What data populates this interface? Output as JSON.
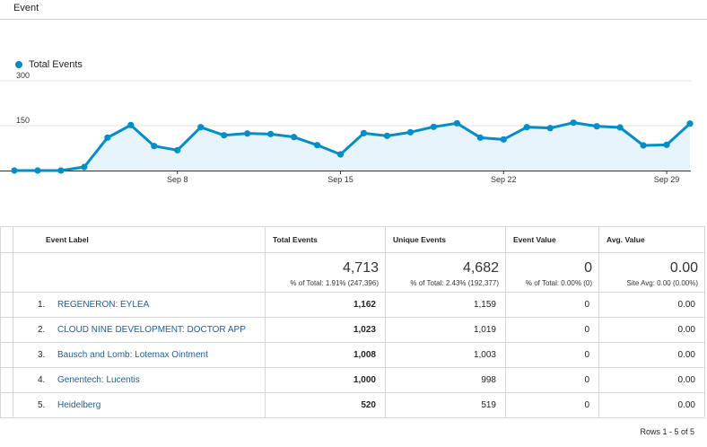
{
  "header": {
    "title": "Event"
  },
  "legend": {
    "label": "Total Events",
    "color": "#058dc7"
  },
  "chart_data": {
    "type": "area",
    "series": [
      {
        "name": "Total Events",
        "values": [
          0,
          0,
          0,
          12,
          110,
          152,
          82,
          68,
          145,
          118,
          124,
          122,
          112,
          85,
          54,
          125,
          116,
          128,
          146,
          158,
          110,
          104,
          145,
          142,
          160,
          148,
          144,
          84,
          86,
          157
        ]
      }
    ],
    "yticks": [
      "300",
      "150"
    ],
    "ylim": [
      0,
      300
    ],
    "xticks": [
      {
        "index": 7,
        "label": "Sep 8"
      },
      {
        "index": 14,
        "label": "Sep 15"
      },
      {
        "index": 21,
        "label": "Sep 22"
      },
      {
        "index": 28,
        "label": "Sep 29"
      }
    ],
    "grid": true,
    "line_color": "#058dc7",
    "fill_color": "#e6f3fa"
  },
  "table": {
    "headers": {
      "label": "Event Label",
      "total": "Total Events",
      "unique": "Unique Events",
      "value": "Event Value",
      "avg": "Avg. Value"
    },
    "totals": {
      "total": "4,713",
      "total_sub": "% of Total: 1.91% (247,396)",
      "unique": "4,682",
      "unique_sub": "% of Total: 2.43% (192,377)",
      "value": "0",
      "value_sub": "% of Total: 0.00% (0)",
      "avg": "0.00",
      "avg_sub": "Site Avg: 0.00 (0.00%)"
    },
    "rows": [
      {
        "num": "1.",
        "label": "REGENERON: EYLEA",
        "total": "1,162",
        "unique": "1,159",
        "value": "0",
        "avg": "0.00"
      },
      {
        "num": "2.",
        "label": "CLOUD NINE DEVELOPMENT: DOCTOR APP",
        "total": "1,023",
        "unique": "1,019",
        "value": "0",
        "avg": "0.00"
      },
      {
        "num": "3.",
        "label": "Bausch and Lomb: Lotemax Ointment",
        "total": "1,008",
        "unique": "1,003",
        "value": "0",
        "avg": "0.00"
      },
      {
        "num": "4.",
        "label": "Genentech: Lucentis",
        "total": "1,000",
        "unique": "998",
        "value": "0",
        "avg": "0.00"
      },
      {
        "num": "5.",
        "label": "Heidelberg",
        "total": "520",
        "unique": "519",
        "value": "0",
        "avg": "0.00"
      }
    ]
  },
  "footer": {
    "rows_text": "Rows 1 - 5 of 5"
  }
}
